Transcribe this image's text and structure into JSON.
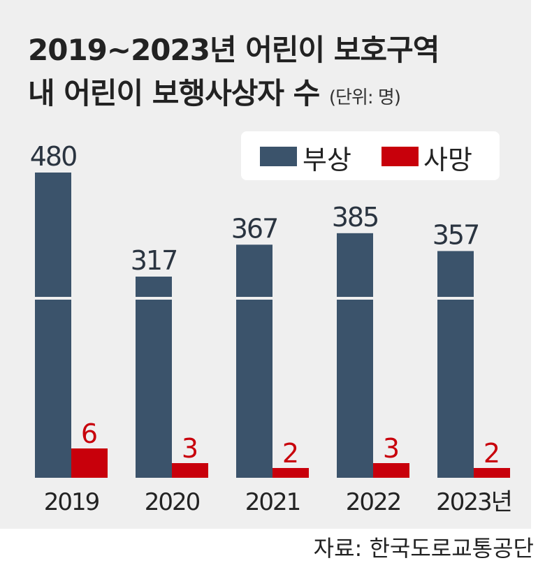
{
  "chart_data": {
    "type": "bar",
    "title": "2019~2023년 어린이 보호구역 내 어린이 보행사상자 수",
    "title_line1": "2019~2023년 어린이 보호구역",
    "title_line2": "내 어린이 보행사상자 수",
    "unit": "(단위: 명)",
    "categories": [
      "2019",
      "2020",
      "2021",
      "2022",
      "2023년"
    ],
    "series": [
      {
        "name": "부상",
        "color": "#3b536b",
        "values": [
          480,
          317,
          367,
          385,
          357
        ]
      },
      {
        "name": "사망",
        "color": "#c8000b",
        "values": [
          6,
          3,
          2,
          3,
          2
        ]
      }
    ],
    "axis_break": true,
    "grid": false,
    "legend_position": "top-right",
    "source": "자료: 한국도로교통공단"
  }
}
